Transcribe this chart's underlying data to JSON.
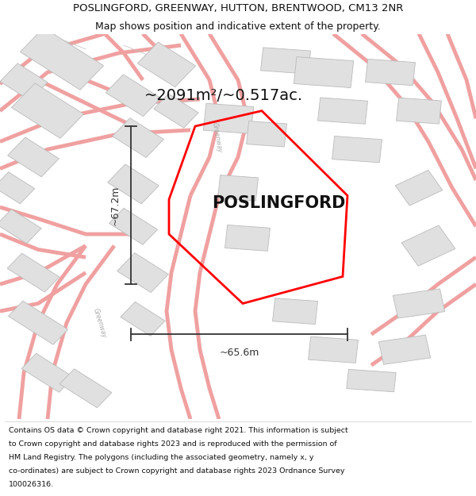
{
  "title_line1": "POSLINGFORD, GREENWAY, HUTTON, BRENTWOOD, CM13 2NR",
  "title_line2": "Map shows position and indicative extent of the property.",
  "property_label": "POSLINGFORD",
  "area_text": "~2091m²/~0.517ac.",
  "width_text": "~65.6m",
  "height_text": "~67.2m",
  "footer_lines": [
    "Contains OS data © Crown copyright and database right 2021. This information is subject",
    "to Crown copyright and database rights 2023 and is reproduced with the permission of",
    "HM Land Registry. The polygons (including the associated geometry, namely x, y",
    "co-ordinates) are subject to Crown copyright and database rights 2023 Ordnance Survey",
    "100026316."
  ],
  "bg_color": "#ffffff",
  "map_bg": "#ffffff",
  "road_color": "#f0a0a0",
  "road_fill": "#f8f4f4",
  "building_color": "#e0e0e0",
  "building_edge": "#bbbbbb",
  "property_color": "red",
  "dim_line_color": "#333333",
  "greenway_label_color": "#999999",
  "title_fontsize": 9.5,
  "subtitle_fontsize": 9.0,
  "area_fontsize": 14,
  "property_label_fontsize": 15,
  "dim_fontsize": 9,
  "footer_fontsize": 6.8
}
